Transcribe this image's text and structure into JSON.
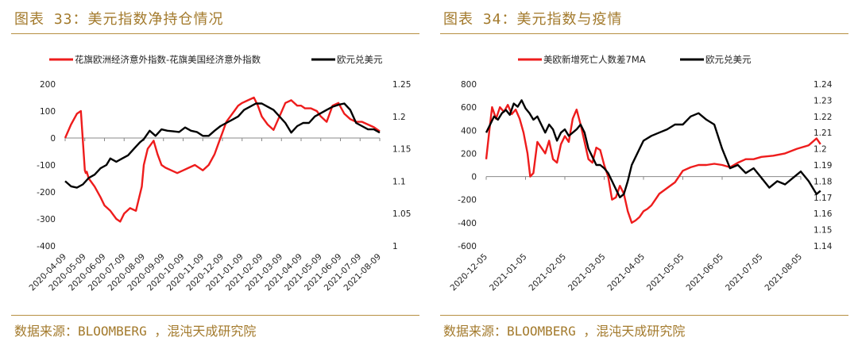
{
  "charts": [
    {
      "title": "图表 33：美元指数净持仓情况",
      "source": "数据来源：BLOOMBERG ，混沌天成研究院"
    },
    {
      "title": "图表 34：美元指数与疫情",
      "source": "数据来源：BLOOMBERG ，混沌天成研究院"
    }
  ],
  "colors": {
    "red": "#ee1c1c",
    "black": "#000000",
    "accent": "#a37a2c",
    "axis": "#888888"
  },
  "chart_data": [
    {
      "type": "line",
      "legend_position": "top",
      "grid": false,
      "x_ticks": [
        "2020-04-09",
        "2020-05-09",
        "2020-06-09",
        "2020-07-09",
        "2020-08-09",
        "2020-09-09",
        "2020-10-09",
        "2020-11-09",
        "2020-12-09",
        "2021-01-09",
        "2021-02-09",
        "2021-03-09",
        "2021-04-09",
        "2021-05-09",
        "2021-06-09",
        "2021-07-09",
        "2021-08-09"
      ],
      "ylim_left": [
        -400,
        200
      ],
      "y_ticks_left": [
        200,
        100,
        0,
        -100,
        -200,
        -300,
        -400
      ],
      "ylim_right": [
        1.0,
        1.25
      ],
      "y_ticks_right": [
        1.25,
        1.2,
        1.15,
        1.1,
        1.05,
        1
      ],
      "y_tick_labels_right": [
        "1.25",
        "1.2",
        "1.15",
        "1.1",
        "1.05",
        "1"
      ],
      "series": [
        {
          "name": "花旗欧洲经济意外指数-花旗美国经济意外指数",
          "axis": "left",
          "color": "#ee1c1c",
          "x": [
            0,
            0.3,
            0.6,
            0.8,
            1.0,
            1.05,
            1.1,
            1.2,
            1.5,
            1.8,
            2.0,
            2.3,
            2.6,
            2.8,
            3.0,
            3.3,
            3.6,
            3.9,
            4.0,
            4.2,
            4.5,
            4.7,
            4.9,
            5.1,
            5.4,
            5.7,
            6.0,
            6.3,
            6.6,
            7.0,
            7.3,
            7.6,
            7.8,
            8.0,
            8.2,
            8.4,
            8.6,
            8.8,
            9.0,
            9.3,
            9.6,
            9.8,
            10.0,
            10.3,
            10.6,
            10.9,
            11.2,
            11.5,
            11.8,
            12.0,
            12.2,
            12.5,
            12.8,
            13.0,
            13.3,
            13.6,
            13.9,
            14.2,
            14.5,
            14.8,
            15.1,
            15.4,
            15.7,
            16.0
          ],
          "values": [
            0,
            50,
            90,
            100,
            -120,
            -130,
            -125,
            -150,
            -180,
            -220,
            -250,
            -270,
            -300,
            -310,
            -280,
            -260,
            -270,
            -180,
            -100,
            -40,
            -10,
            -60,
            -100,
            -110,
            -120,
            -130,
            -120,
            -110,
            -100,
            -120,
            -100,
            -60,
            -20,
            20,
            60,
            80,
            100,
            120,
            130,
            140,
            150,
            120,
            80,
            50,
            30,
            80,
            130,
            140,
            120,
            120,
            110,
            110,
            100,
            80,
            60,
            120,
            130,
            90,
            70,
            60,
            60,
            50,
            40,
            25
          ]
        },
        {
          "name": "欧元兑美元",
          "axis": "right",
          "color": "#000000",
          "x": [
            0,
            0.3,
            0.6,
            0.9,
            1.2,
            1.5,
            1.8,
            2.1,
            2.3,
            2.6,
            2.9,
            3.2,
            3.5,
            3.8,
            4.0,
            4.3,
            4.6,
            4.9,
            5.2,
            5.5,
            5.8,
            6.1,
            6.4,
            6.7,
            7.0,
            7.3,
            7.6,
            7.9,
            8.2,
            8.5,
            8.8,
            9.1,
            9.4,
            9.7,
            10.0,
            10.3,
            10.6,
            10.9,
            11.2,
            11.5,
            11.8,
            12.1,
            12.4,
            12.7,
            13.0,
            13.3,
            13.6,
            13.9,
            14.2,
            14.5,
            14.8,
            15.1,
            15.4,
            15.7,
            16.0
          ],
          "values": [
            1.1,
            1.092,
            1.09,
            1.095,
            1.105,
            1.11,
            1.12,
            1.125,
            1.135,
            1.13,
            1.135,
            1.14,
            1.15,
            1.16,
            1.165,
            1.178,
            1.17,
            1.18,
            1.178,
            1.177,
            1.176,
            1.183,
            1.178,
            1.176,
            1.17,
            1.17,
            1.178,
            1.185,
            1.19,
            1.195,
            1.2,
            1.21,
            1.215,
            1.22,
            1.22,
            1.215,
            1.21,
            1.2,
            1.19,
            1.175,
            1.185,
            1.19,
            1.19,
            1.2,
            1.205,
            1.21,
            1.215,
            1.218,
            1.22,
            1.21,
            1.19,
            1.185,
            1.18,
            1.18,
            1.175
          ]
        }
      ]
    },
    {
      "type": "line",
      "legend_position": "top",
      "grid": false,
      "x_ticks": [
        "2020-12-05",
        "2021-01-05",
        "2021-02-05",
        "2021-03-05",
        "2021-04-05",
        "2021-05-05",
        "2021-06-05",
        "2021-07-05",
        "2021-08-05"
      ],
      "ylim_left": [
        -600,
        800
      ],
      "y_ticks_left": [
        800,
        600,
        400,
        200,
        0,
        -200,
        -400,
        -600
      ],
      "ylim_right": [
        1.14,
        1.24
      ],
      "y_ticks_right": [
        1.24,
        1.23,
        1.22,
        1.21,
        1.2,
        1.19,
        1.18,
        1.17,
        1.16,
        1.15,
        1.14
      ],
      "y_tick_labels_right": [
        "1.24",
        "1.23",
        "1.22",
        "1.21",
        "1.2",
        "1.19",
        "1.18",
        "1.17",
        "1.16",
        "1.15",
        "1.14"
      ],
      "series": [
        {
          "name": "美欧新增死亡人数差7MA",
          "axis": "left",
          "color": "#ee1c1c",
          "x": [
            0,
            0.08,
            0.15,
            0.25,
            0.35,
            0.45,
            0.55,
            0.65,
            0.75,
            0.85,
            0.95,
            1.05,
            1.12,
            1.2,
            1.3,
            1.4,
            1.5,
            1.6,
            1.7,
            1.8,
            1.9,
            2.0,
            2.1,
            2.2,
            2.3,
            2.4,
            2.5,
            2.6,
            2.7,
            2.8,
            2.9,
            3.0,
            3.1,
            3.2,
            3.3,
            3.4,
            3.5,
            3.6,
            3.7,
            3.8,
            3.9,
            4.0,
            4.1,
            4.2,
            4.3,
            4.4,
            4.6,
            4.8,
            5.0,
            5.2,
            5.4,
            5.6,
            5.8,
            6.0,
            6.2,
            6.4,
            6.6,
            6.8,
            7.0,
            7.3,
            7.6,
            7.9,
            8.2,
            8.4,
            8.5
          ],
          "values": [
            150,
            400,
            600,
            500,
            600,
            560,
            620,
            540,
            580,
            500,
            380,
            200,
            0,
            30,
            300,
            250,
            200,
            310,
            150,
            120,
            280,
            350,
            300,
            500,
            580,
            450,
            300,
            150,
            120,
            250,
            230,
            100,
            0,
            -200,
            -180,
            -80,
            -150,
            -300,
            -400,
            -380,
            -350,
            -300,
            -280,
            -250,
            -200,
            -150,
            -100,
            -50,
            50,
            80,
            100,
            100,
            110,
            100,
            80,
            120,
            150,
            150,
            170,
            180,
            200,
            240,
            270,
            330,
            280
          ]
        },
        {
          "name": "欧元兑美元",
          "axis": "right",
          "color": "#000000",
          "x": [
            0,
            0.1,
            0.2,
            0.3,
            0.4,
            0.5,
            0.6,
            0.7,
            0.8,
            0.9,
            1.0,
            1.1,
            1.2,
            1.3,
            1.4,
            1.5,
            1.6,
            1.7,
            1.8,
            1.9,
            2.0,
            2.1,
            2.2,
            2.3,
            2.4,
            2.5,
            2.6,
            2.7,
            2.8,
            2.9,
            3.0,
            3.1,
            3.2,
            3.3,
            3.4,
            3.5,
            3.6,
            3.7,
            3.8,
            3.9,
            4.0,
            4.2,
            4.4,
            4.6,
            4.8,
            5.0,
            5.2,
            5.4,
            5.6,
            5.8,
            6.0,
            6.2,
            6.4,
            6.6,
            6.8,
            7.0,
            7.2,
            7.4,
            7.6,
            7.8,
            8.0,
            8.2,
            8.3,
            8.4,
            8.5
          ],
          "values": [
            1.21,
            1.215,
            1.22,
            1.218,
            1.222,
            1.224,
            1.221,
            1.228,
            1.226,
            1.23,
            1.225,
            1.222,
            1.218,
            1.22,
            1.215,
            1.21,
            1.215,
            1.212,
            1.205,
            1.21,
            1.212,
            1.208,
            1.21,
            1.212,
            1.215,
            1.21,
            1.2,
            1.195,
            1.19,
            1.19,
            1.188,
            1.185,
            1.18,
            1.175,
            1.17,
            1.172,
            1.18,
            1.19,
            1.195,
            1.2,
            1.205,
            1.208,
            1.21,
            1.212,
            1.215,
            1.215,
            1.22,
            1.222,
            1.218,
            1.215,
            1.2,
            1.188,
            1.19,
            1.185,
            1.188,
            1.182,
            1.176,
            1.18,
            1.178,
            1.182,
            1.186,
            1.18,
            1.176,
            1.172,
            1.174
          ]
        }
      ]
    }
  ]
}
